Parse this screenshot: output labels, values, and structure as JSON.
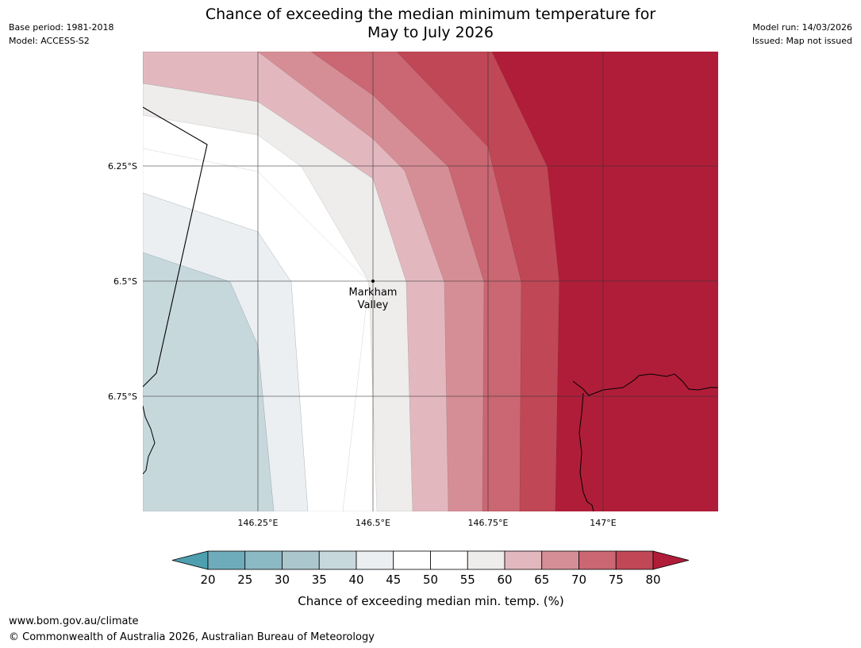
{
  "header": {
    "title_line1": "Chance of exceeding the median minimum temperature for",
    "title_line2": "May to July 2026",
    "base_period": "Base period: 1981-2018",
    "model": "Model: ACCESS-S2",
    "model_run": "Model run: 14/03/2026",
    "issued": "Issued: Map not issued"
  },
  "map": {
    "lat_labels": [
      "6.25°S",
      "6.5°S",
      "6.75°S"
    ],
    "lon_labels": [
      "146.25°E",
      "146.5°E",
      "146.75°E",
      "147°E"
    ],
    "place": {
      "name_line1": "Markham",
      "name_line2": "Valley"
    }
  },
  "colorbar": {
    "ticks": [
      "20",
      "25",
      "30",
      "35",
      "40",
      "45",
      "50",
      "55",
      "60",
      "65",
      "70",
      "75",
      "80"
    ],
    "label": "Chance of exceeding median min. temp. (%)",
    "colors": [
      "#4ea0b0",
      "#6eacbb",
      "#8bb9c4",
      "#abc6cd",
      "#c7d8dd",
      "#ebeff2",
      "#ffffff",
      "#ffffff",
      "#efecec",
      "#e2b8be",
      "#d68e96",
      "#ca6772",
      "#c04756",
      "#b01d39"
    ]
  },
  "footer": {
    "url": "www.bom.gov.au/climate",
    "copyright": "© Commonwealth of Australia 2026, Australian Bureau of Meteorology"
  }
}
